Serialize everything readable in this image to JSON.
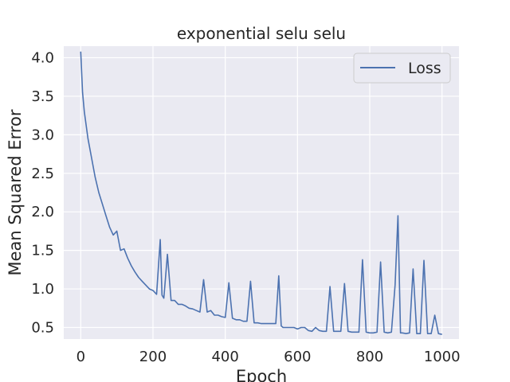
{
  "chart_data": {
    "type": "line",
    "title": "exponential selu selu",
    "xlabel": "Epoch",
    "ylabel": "Mean Squared Error",
    "xlim": [
      -47,
      1047
    ],
    "ylim": [
      0.35,
      4.15
    ],
    "xticks": [
      0,
      200,
      400,
      600,
      800,
      1000
    ],
    "yticks": [
      0.5,
      1.0,
      1.5,
      2.0,
      2.5,
      3.0,
      3.5,
      4.0
    ],
    "xtick_labels": [
      "0",
      "200",
      "400",
      "600",
      "800",
      "1000"
    ],
    "ytick_labels": [
      "0.5",
      "1.0",
      "1.5",
      "2.0",
      "2.5",
      "3.0",
      "3.5",
      "4.0"
    ],
    "grid": true,
    "legend": {
      "position": "top-right"
    },
    "line_color": "#4c72b0",
    "background_color": "#eaeaf2",
    "series": [
      {
        "name": "Loss",
        "x": [
          0,
          5,
          10,
          20,
          30,
          40,
          50,
          60,
          70,
          80,
          90,
          100,
          110,
          120,
          130,
          140,
          150,
          160,
          170,
          180,
          190,
          200,
          210,
          220,
          225,
          230,
          240,
          250,
          260,
          270,
          280,
          290,
          300,
          310,
          320,
          330,
          340,
          350,
          360,
          370,
          380,
          390,
          400,
          410,
          420,
          430,
          440,
          450,
          460,
          470,
          480,
          490,
          500,
          510,
          520,
          530,
          540,
          548,
          555,
          560,
          570,
          580,
          590,
          600,
          610,
          620,
          630,
          640,
          650,
          660,
          670,
          680,
          690,
          700,
          710,
          720,
          730,
          740,
          750,
          760,
          770,
          780,
          790,
          800,
          810,
          820,
          830,
          840,
          850,
          860,
          870,
          878,
          885,
          890,
          900,
          910,
          920,
          930,
          940,
          950,
          960,
          970,
          980,
          990,
          1000
        ],
        "y": [
          4.08,
          3.55,
          3.3,
          2.95,
          2.7,
          2.45,
          2.25,
          2.1,
          1.95,
          1.8,
          1.7,
          1.75,
          1.5,
          1.52,
          1.4,
          1.3,
          1.22,
          1.15,
          1.1,
          1.05,
          1.0,
          0.98,
          0.93,
          1.64,
          0.92,
          0.88,
          1.45,
          0.85,
          0.85,
          0.8,
          0.8,
          0.78,
          0.75,
          0.74,
          0.72,
          0.7,
          1.12,
          0.7,
          0.72,
          0.66,
          0.66,
          0.64,
          0.63,
          1.08,
          0.62,
          0.6,
          0.6,
          0.58,
          0.58,
          1.1,
          0.56,
          0.56,
          0.55,
          0.55,
          0.55,
          0.55,
          0.55,
          1.17,
          0.52,
          0.5,
          0.5,
          0.5,
          0.5,
          0.48,
          0.5,
          0.5,
          0.46,
          0.45,
          0.5,
          0.46,
          0.45,
          0.45,
          1.03,
          0.45,
          0.45,
          0.45,
          1.07,
          0.45,
          0.44,
          0.44,
          0.44,
          1.38,
          0.44,
          0.43,
          0.43,
          0.44,
          1.35,
          0.44,
          0.43,
          0.44,
          1.05,
          1.95,
          0.43,
          0.43,
          0.42,
          0.43,
          1.26,
          0.42,
          0.42,
          1.37,
          0.42,
          0.42,
          0.66,
          0.42,
          0.41
        ]
      }
    ]
  }
}
